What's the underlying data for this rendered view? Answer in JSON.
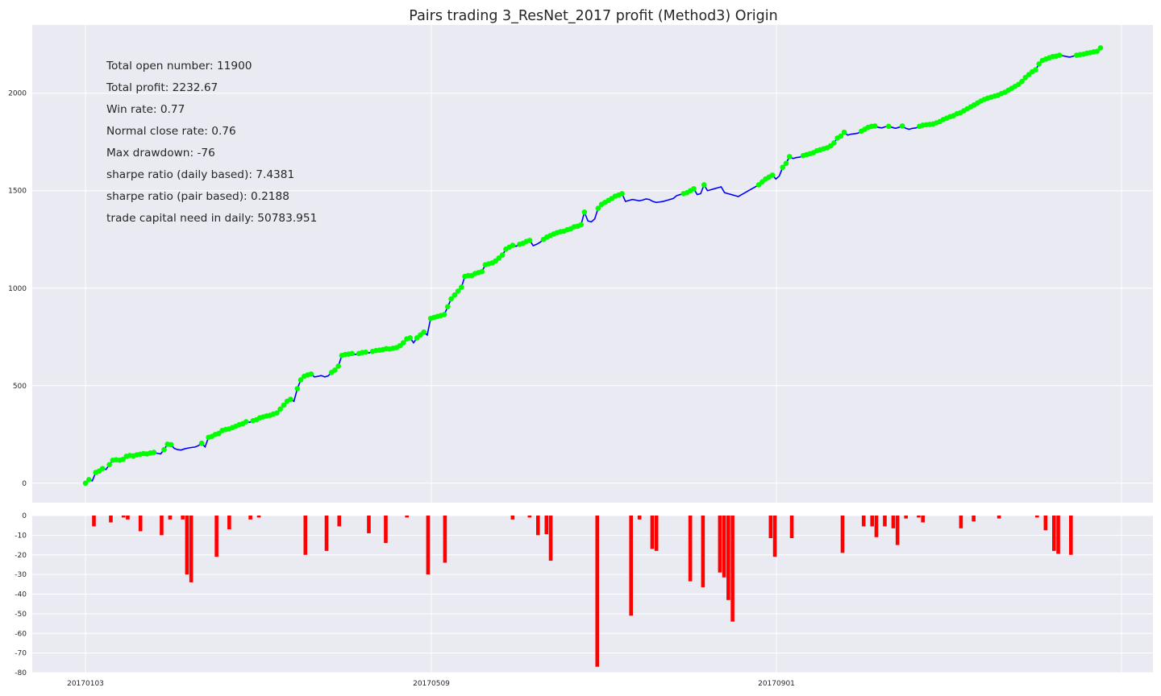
{
  "chart_data": [
    {
      "type": "line",
      "title": "Pairs trading 3_ResNet_2017 profit (Method3) Origin",
      "xlabel": "",
      "ylabel": "",
      "x_ticks": [
        "20170103",
        "20170509",
        "20170901"
      ],
      "y_ticks": [
        "0",
        "500",
        "1000",
        "1500",
        "2000"
      ],
      "ylim": [
        -100,
        2350
      ],
      "grid": true,
      "line_color": "#0000ff",
      "marker_color": "#00ff00",
      "series": [
        {
          "values": [
            0,
            18,
            12,
            55,
            62,
            75,
            70,
            95,
            118,
            120,
            118,
            122,
            138,
            142,
            140,
            145,
            148,
            152,
            150,
            155,
            158,
            153,
            150,
            172,
            200,
            198,
            178,
            172,
            170,
            176,
            180,
            183,
            185,
            192,
            205,
            186,
            235,
            240,
            250,
            255,
            270,
            275,
            278,
            285,
            292,
            300,
            305,
            315,
            312,
            320,
            325,
            335,
            340,
            345,
            348,
            355,
            360,
            380,
            400,
            420,
            430,
            420,
            485,
            530,
            548,
            555,
            560,
            545,
            548,
            552,
            545,
            550,
            568,
            580,
            600,
            655,
            660,
            662,
            665,
            660,
            665,
            670,
            672,
            668,
            676,
            680,
            682,
            685,
            690,
            688,
            692,
            695,
            705,
            720,
            740,
            745,
            720,
            745,
            760,
            775,
            760,
            845,
            850,
            855,
            860,
            865,
            905,
            945,
            965,
            985,
            1005,
            1060,
            1065,
            1065,
            1075,
            1080,
            1085,
            1120,
            1125,
            1130,
            1140,
            1155,
            1170,
            1200,
            1210,
            1220,
            1215,
            1225,
            1230,
            1240,
            1245,
            1218,
            1225,
            1235,
            1250,
            1262,
            1270,
            1278,
            1285,
            1290,
            1292,
            1300,
            1305,
            1315,
            1318,
            1325,
            1390,
            1345,
            1340,
            1355,
            1410,
            1430,
            1440,
            1450,
            1460,
            1472,
            1478,
            1485,
            1445,
            1450,
            1455,
            1452,
            1448,
            1452,
            1458,
            1455,
            1445,
            1440,
            1442,
            1445,
            1450,
            1455,
            1460,
            1475,
            1480,
            1485,
            1490,
            1500,
            1510,
            1480,
            1485,
            1530,
            1500,
            1505,
            1510,
            1515,
            1520,
            1490,
            1485,
            1480,
            1475,
            1470,
            1480,
            1490,
            1500,
            1510,
            1520,
            1530,
            1545,
            1560,
            1570,
            1580,
            1560,
            1575,
            1620,
            1640,
            1675,
            1665,
            1670,
            1672,
            1680,
            1685,
            1690,
            1695,
            1705,
            1710,
            1715,
            1720,
            1730,
            1745,
            1770,
            1780,
            1800,
            1785,
            1790,
            1792,
            1795,
            1805,
            1815,
            1825,
            1830,
            1832,
            1825,
            1822,
            1828,
            1830,
            1825,
            1820,
            1825,
            1832,
            1820,
            1815,
            1820,
            1822,
            1830,
            1836,
            1838,
            1840,
            1842,
            1848,
            1855,
            1865,
            1872,
            1880,
            1885,
            1895,
            1900,
            1910,
            1920,
            1930,
            1940,
            1950,
            1960,
            1968,
            1975,
            1980,
            1985,
            1990,
            1998,
            2005,
            2015,
            2025,
            2035,
            2045,
            2060,
            2080,
            2095,
            2110,
            2120,
            2150,
            2168,
            2175,
            2182,
            2188,
            2190,
            2195,
            2192,
            2188,
            2185,
            2190,
            2195,
            2198,
            2200,
            2205,
            2208,
            2212,
            2215,
            2232.67
          ]
        }
      ],
      "stats": [
        "Total open number: 11900",
        "Total profit: 2232.67",
        "Win rate: 0.77",
        "Normal close rate: 0.76",
        "Max drawdown: -76",
        "sharpe ratio (daily based): 7.4381",
        "sharpe ratio (pair based): 0.2188",
        "trade capital need in daily: 50783.951"
      ]
    },
    {
      "type": "bar",
      "xlabel": "",
      "ylabel": "",
      "ylim": [
        -80,
        0
      ],
      "y_ticks": [
        "0",
        "-10",
        "-20",
        "-30",
        "-40",
        "-50",
        "-60",
        "-70",
        "-80"
      ],
      "x_ticks": [
        "20170103",
        "20170509",
        "20170901"
      ],
      "bar_color": "#ff0000",
      "grid": true,
      "bars": [
        {
          "x": 2,
          "value": -5.5
        },
        {
          "x": 6,
          "value": -3.5
        },
        {
          "x": 9,
          "value": -1
        },
        {
          "x": 10,
          "value": -2
        },
        {
          "x": 13,
          "value": -8
        },
        {
          "x": 18,
          "value": -10
        },
        {
          "x": 20,
          "value": -2
        },
        {
          "x": 23,
          "value": -2
        },
        {
          "x": 24,
          "value": -30
        },
        {
          "x": 25,
          "value": -34
        },
        {
          "x": 31,
          "value": -21
        },
        {
          "x": 34,
          "value": -7
        },
        {
          "x": 39,
          "value": -2
        },
        {
          "x": 41,
          "value": -1
        },
        {
          "x": 52,
          "value": -20
        },
        {
          "x": 57,
          "value": -18
        },
        {
          "x": 60,
          "value": -5.5
        },
        {
          "x": 67,
          "value": -9
        },
        {
          "x": 71,
          "value": -14
        },
        {
          "x": 76,
          "value": -1
        },
        {
          "x": 81,
          "value": -30
        },
        {
          "x": 85,
          "value": -24
        },
        {
          "x": 101,
          "value": -2
        },
        {
          "x": 105,
          "value": -1
        },
        {
          "x": 107,
          "value": -10
        },
        {
          "x": 109,
          "value": -9.5
        },
        {
          "x": 110,
          "value": -23
        },
        {
          "x": 121,
          "value": -77
        },
        {
          "x": 129,
          "value": -51
        },
        {
          "x": 131,
          "value": -2
        },
        {
          "x": 134,
          "value": -17
        },
        {
          "x": 135,
          "value": -18
        },
        {
          "x": 143,
          "value": -33.5
        },
        {
          "x": 146,
          "value": -36.5
        },
        {
          "x": 150,
          "value": -29
        },
        {
          "x": 151,
          "value": -31.5
        },
        {
          "x": 152,
          "value": -43
        },
        {
          "x": 153,
          "value": -54
        },
        {
          "x": 162,
          "value": -11.5
        },
        {
          "x": 163,
          "value": -21
        },
        {
          "x": 167,
          "value": -11.5
        },
        {
          "x": 179,
          "value": -19
        },
        {
          "x": 184,
          "value": -5.5
        },
        {
          "x": 186,
          "value": -5.5
        },
        {
          "x": 187,
          "value": -11
        },
        {
          "x": 189,
          "value": -5.5
        },
        {
          "x": 191,
          "value": -6.5
        },
        {
          "x": 192,
          "value": -15
        },
        {
          "x": 194,
          "value": -1.5
        },
        {
          "x": 197,
          "value": -1
        },
        {
          "x": 198,
          "value": -3.5
        },
        {
          "x": 207,
          "value": -6.5
        },
        {
          "x": 210,
          "value": -3
        },
        {
          "x": 216,
          "value": -1.5
        },
        {
          "x": 225,
          "value": -1
        },
        {
          "x": 227,
          "value": -7.5
        },
        {
          "x": 229,
          "value": -18
        },
        {
          "x": 230,
          "value": -19.5
        },
        {
          "x": 233,
          "value": -20
        }
      ]
    }
  ]
}
